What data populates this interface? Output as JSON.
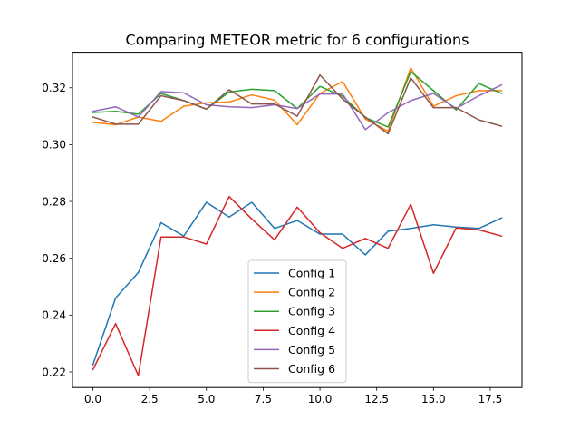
{
  "chart_data": {
    "type": "line",
    "title": "Comparing METEOR metric for 6 configurations",
    "xlabel": "",
    "ylabel": "",
    "x": [
      0,
      1,
      2,
      3,
      4,
      5,
      6,
      7,
      8,
      9,
      10,
      11,
      12,
      13,
      14,
      15,
      16,
      17,
      18
    ],
    "xlim": [
      -0.9,
      18.9
    ],
    "ylim": [
      0.2145,
      0.3325
    ],
    "xticks": [
      0.0,
      2.5,
      5.0,
      7.5,
      10.0,
      12.5,
      15.0,
      17.5
    ],
    "xtick_labels": [
      "0.0",
      "2.5",
      "5.0",
      "7.5",
      "10.0",
      "12.5",
      "15.0",
      "17.5"
    ],
    "yticks": [
      0.22,
      0.24,
      0.26,
      0.28,
      0.3,
      0.32
    ],
    "ytick_labels": [
      "0.22",
      "0.24",
      "0.26",
      "0.28",
      "0.30",
      "0.32"
    ],
    "grid": false,
    "legend_position": "lower center",
    "series": [
      {
        "name": "Config 1",
        "color": "#1f77b4",
        "values": [
          0.2225,
          0.246,
          0.255,
          0.2725,
          0.2678,
          0.2797,
          0.2745,
          0.2797,
          0.2705,
          0.2733,
          0.2685,
          0.2685,
          0.2612,
          0.2695,
          0.2705,
          0.2718,
          0.271,
          0.2705,
          0.2742
        ]
      },
      {
        "name": "Config 2",
        "color": "#ff7f0e",
        "values": [
          0.3078,
          0.307,
          0.3097,
          0.3082,
          0.3135,
          0.3147,
          0.315,
          0.3175,
          0.3157,
          0.307,
          0.318,
          0.3222,
          0.309,
          0.3047,
          0.327,
          0.3135,
          0.3172,
          0.319,
          0.319
        ]
      },
      {
        "name": "Config 3",
        "color": "#2ca02c",
        "values": [
          0.3113,
          0.3117,
          0.3107,
          0.318,
          0.3155,
          0.3125,
          0.3185,
          0.3195,
          0.319,
          0.3127,
          0.3205,
          0.317,
          0.3095,
          0.3062,
          0.3257,
          0.319,
          0.3122,
          0.3215,
          0.318
        ]
      },
      {
        "name": "Config 4",
        "color": "#d62728",
        "values": [
          0.2208,
          0.237,
          0.2187,
          0.2675,
          0.2675,
          0.265,
          0.2817,
          0.2738,
          0.2665,
          0.278,
          0.269,
          0.2635,
          0.267,
          0.2635,
          0.279,
          0.2547,
          0.2707,
          0.27,
          0.2678
        ]
      },
      {
        "name": "Config 5",
        "color": "#9467bd",
        "values": [
          0.3117,
          0.3133,
          0.3097,
          0.3187,
          0.3182,
          0.314,
          0.3133,
          0.313,
          0.314,
          0.3127,
          0.3178,
          0.3178,
          0.3053,
          0.3112,
          0.3155,
          0.318,
          0.3127,
          0.3172,
          0.321
        ]
      },
      {
        "name": "Config 6",
        "color": "#8c564b",
        "values": [
          0.3097,
          0.3072,
          0.3072,
          0.3172,
          0.3155,
          0.3125,
          0.3193,
          0.3143,
          0.3143,
          0.31,
          0.3245,
          0.316,
          0.3097,
          0.3038,
          0.3235,
          0.313,
          0.313,
          0.3087,
          0.3065
        ]
      }
    ]
  }
}
